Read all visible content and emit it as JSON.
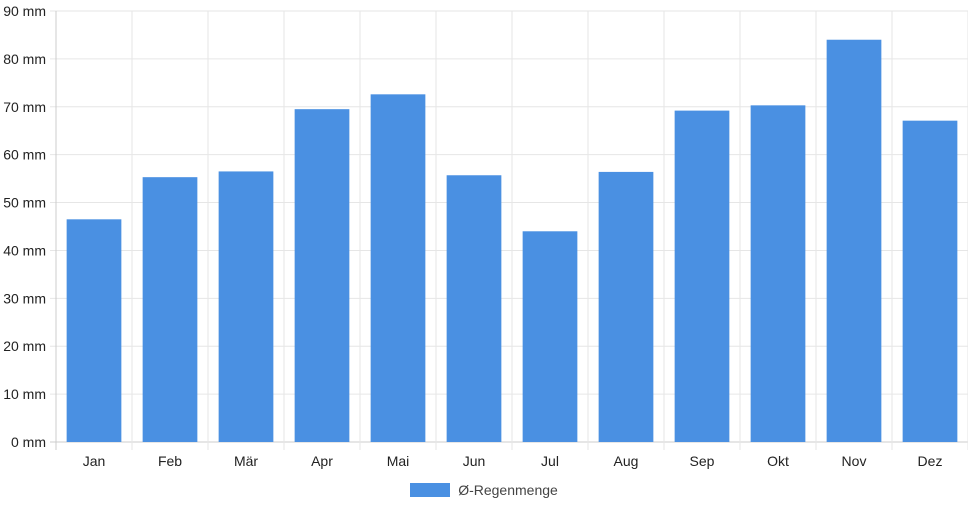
{
  "chart_data": {
    "type": "bar",
    "title": "",
    "xlabel": "",
    "ylabel": "",
    "ylim": [
      0,
      90
    ],
    "ytick_step": 10,
    "ytick_unit": "mm",
    "grid": true,
    "legend_position": "bottom",
    "categories": [
      "Jan",
      "Feb",
      "Mär",
      "Apr",
      "Mai",
      "Jun",
      "Jul",
      "Aug",
      "Sep",
      "Okt",
      "Nov",
      "Dez"
    ],
    "series": [
      {
        "name": "Ø-Regenmenge",
        "color": "#4a90e2",
        "values": [
          46.5,
          55.3,
          56.5,
          69.5,
          72.6,
          55.7,
          44.0,
          56.4,
          69.2,
          70.3,
          84.0,
          67.1
        ]
      }
    ]
  }
}
